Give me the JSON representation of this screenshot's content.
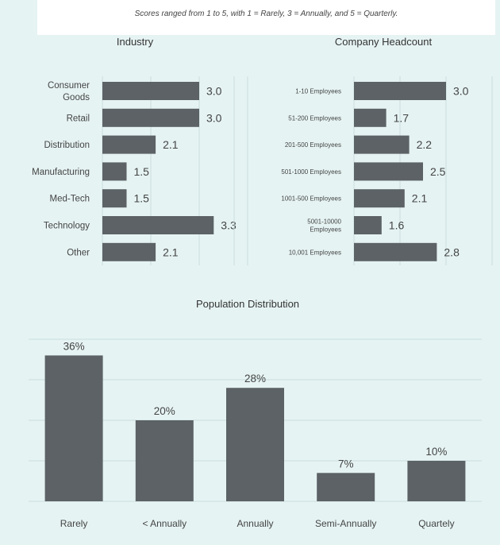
{
  "note": "Scores ranged from 1 to 5, with 1 = Rarely, 3 = Annually, and 5 = Quarterly.",
  "colors": {
    "bar": "#5c6266",
    "grid": "#c9dcdc",
    "background": "#e6f3f3"
  },
  "chart_data": [
    {
      "type": "bar",
      "orientation": "horizontal",
      "title": "Industry",
      "categories": [
        [
          "Consumer",
          "Goods"
        ],
        [
          "Retail"
        ],
        [
          "Distribution"
        ],
        [
          "Manufacturing"
        ],
        [
          "Med-Tech"
        ],
        [
          "Technology"
        ],
        [
          "Other"
        ]
      ],
      "values": [
        3.0,
        3.0,
        2.1,
        1.5,
        1.5,
        3.3,
        2.1
      ],
      "labels": [
        "3.0",
        "3.0",
        "2.1",
        "1.5",
        "1.5",
        "3.3",
        "2.1"
      ],
      "xlim": [
        1,
        4
      ],
      "grid": true
    },
    {
      "type": "bar",
      "orientation": "horizontal",
      "title": "Company Headcount",
      "categories": [
        [
          "1-10 Employees"
        ],
        [
          "51-200 Employees"
        ],
        [
          "201-500 Employees"
        ],
        [
          "501-1000 Employees"
        ],
        [
          "1001-500 Employees"
        ],
        [
          "5001-10000",
          "Employees"
        ],
        [
          "10,001 Employees"
        ]
      ],
      "values": [
        3.0,
        1.7,
        2.2,
        2.5,
        2.1,
        1.6,
        2.8
      ],
      "labels": [
        "3.0",
        "1.7",
        "2.2",
        "2.5",
        "2.1",
        "1.6",
        "2.8"
      ],
      "xlim": [
        1,
        4
      ],
      "grid": true
    },
    {
      "type": "bar",
      "orientation": "vertical",
      "title": "Population Distribution",
      "categories": [
        "Rarely",
        "< Annually",
        "Annually",
        "Semi-Annually",
        "Quartely"
      ],
      "values": [
        36,
        20,
        28,
        7,
        10
      ],
      "labels": [
        "36%",
        "20%",
        "28%",
        "7%",
        "10%"
      ],
      "ylim": [
        0,
        40
      ],
      "grid": true
    }
  ]
}
